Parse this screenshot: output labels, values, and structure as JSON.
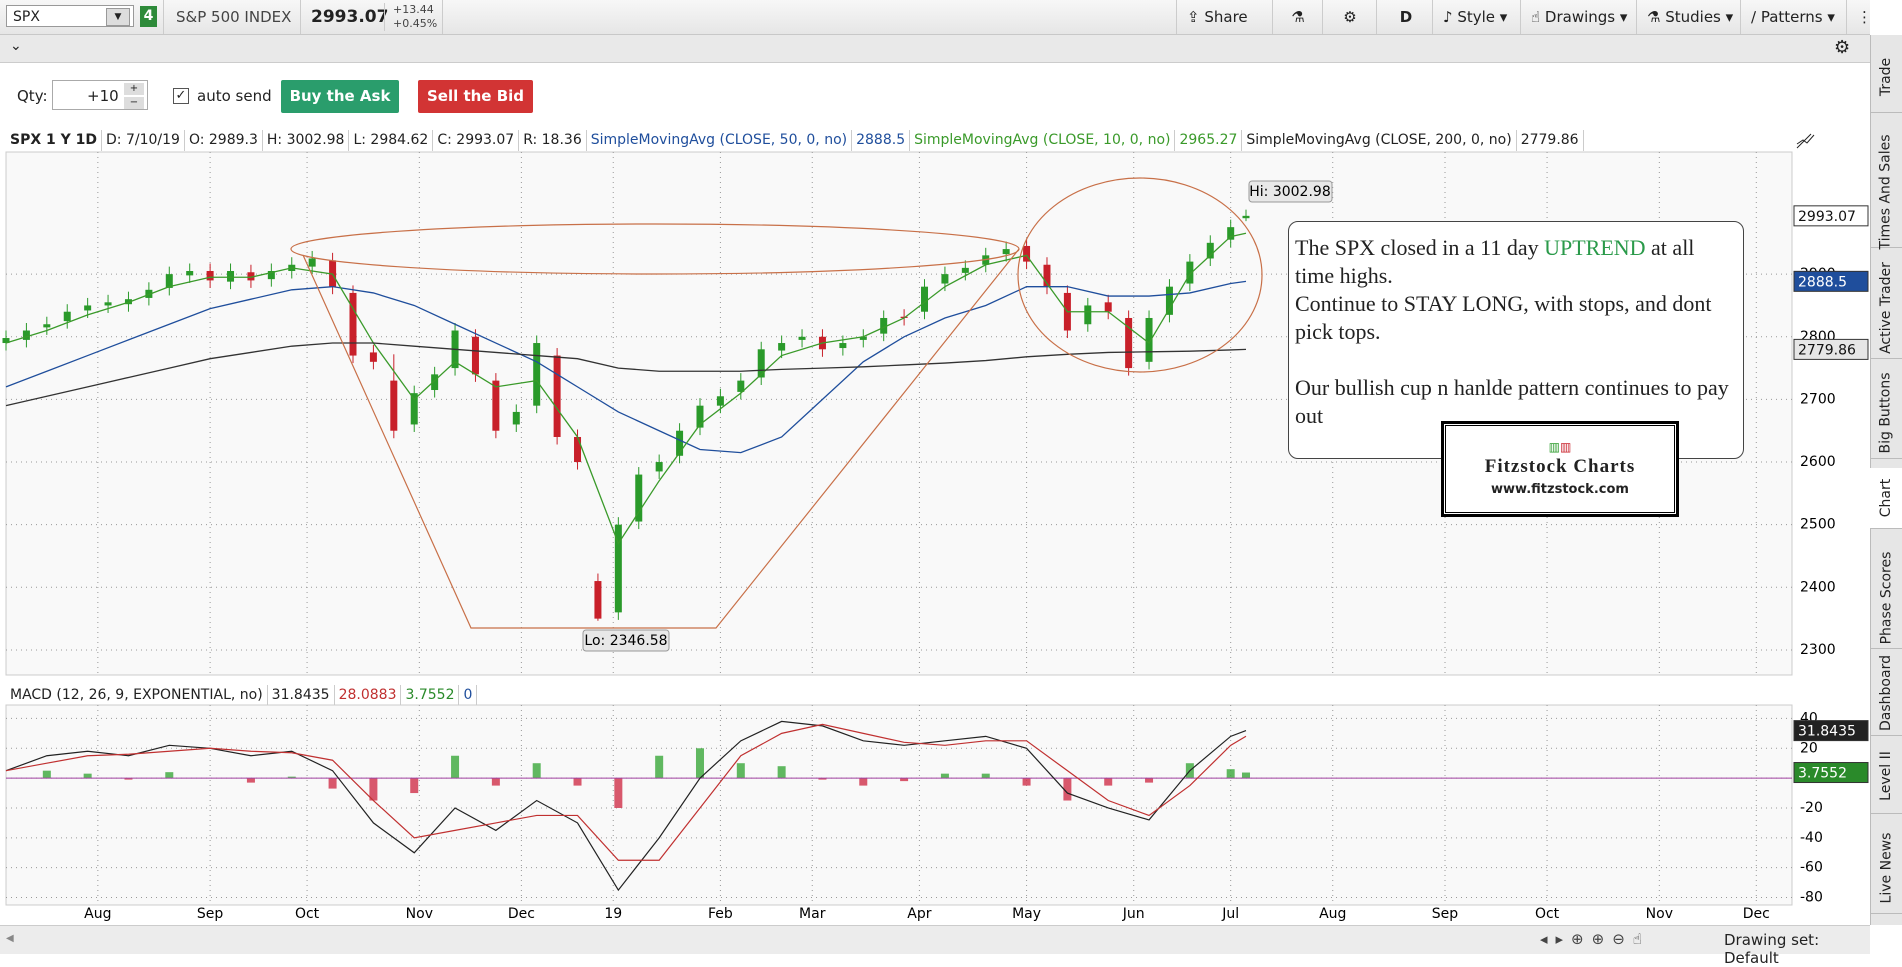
{
  "toolbar": {
    "symbol": "SPX",
    "badge": "4",
    "description": "S&P 500 INDEX",
    "last": "2993.07",
    "change": "+13.44",
    "change_pct": "+0.45%",
    "buttons": [
      "Share",
      "D",
      "Style",
      "Drawings",
      "Studies",
      "Patterns"
    ]
  },
  "order_bar": {
    "qty_label": "Qty:",
    "qty": "+10",
    "auto_send": "auto send",
    "buy": "Buy the Ask",
    "sell": "Sell the Bid"
  },
  "info_bar": [
    "SPX 1 Y 1D",
    "D: 7/10/19",
    "O: 2989.3",
    "H: 3002.98",
    "L: 2984.62",
    "C: 2993.07",
    "R: 18.36"
  ],
  "annotations": {
    "hi": "Hi: 3002.98",
    "lo": "Lo: 2346.58",
    "note": {
      "p1a": "The SPX closed in a 11 day",
      "p1b": "UPTREND",
      "p1c": "at all time highs.",
      "p2": "Continue to STAY LONG, with stops, and dont pick tops.",
      "p3": "Our bullish cup n hanlde pattern continues to pay out"
    },
    "logo": {
      "title": "Fitzstock Charts",
      "url": "www.fitzstock.com"
    }
  },
  "side_tabs": [
    "Trade",
    "Times And Sales",
    "Active Trader",
    "Big Buttons",
    "Chart",
    "Phase Scores",
    "Dashboard",
    "Level II",
    "Live News"
  ],
  "footer": {
    "drawing_set": "Drawing set: Default"
  },
  "chart_data": [
    {
      "type": "candlestick",
      "up_color": "#2a9a2a",
      "down_color": "#c8202a",
      "grid": true,
      "x": [
        0,
        4,
        8,
        12,
        16,
        20,
        24,
        28,
        32,
        36,
        40,
        44,
        48,
        52,
        56,
        60,
        64,
        68,
        72,
        76,
        80,
        84,
        88,
        92,
        96,
        100,
        104,
        108,
        112,
        116,
        120,
        124,
        128,
        132,
        136,
        140,
        144,
        148,
        152,
        156,
        160,
        164,
        168,
        172,
        176,
        180,
        184,
        188,
        192,
        196,
        200,
        204,
        208,
        212,
        216,
        220,
        224,
        228,
        232,
        236,
        240,
        243
      ],
      "open": [
        2790,
        2795,
        2815,
        2825,
        2842,
        2850,
        2852,
        2862,
        2878,
        2898,
        2905,
        2888,
        2903,
        2892,
        2905,
        2912,
        2922,
        2870,
        2775,
        2730,
        2660,
        2715,
        2750,
        2800,
        2730,
        2660,
        2690,
        2770,
        2640,
        2410,
        2360,
        2505,
        2585,
        2610,
        2655,
        2690,
        2712,
        2735,
        2778,
        2795,
        2800,
        2782,
        2795,
        2805,
        2832,
        2840,
        2885,
        2902,
        2915,
        2932,
        2945,
        2915,
        2870,
        2820,
        2855,
        2830,
        2760,
        2835,
        2885,
        2925,
        2955,
        2989.3
      ],
      "high": [
        2810,
        2822,
        2832,
        2852,
        2862,
        2867,
        2872,
        2887,
        2912,
        2917,
        2917,
        2917,
        2915,
        2917,
        2927,
        2937,
        2934,
        2882,
        2787,
        2772,
        2722,
        2752,
        2822,
        2812,
        2742,
        2692,
        2802,
        2782,
        2652,
        2422,
        2512,
        2592,
        2612,
        2662,
        2702,
        2717,
        2742,
        2792,
        2802,
        2812,
        2812,
        2802,
        2812,
        2842,
        2844,
        2892,
        2912,
        2922,
        2942,
        2952,
        2957,
        2927,
        2882,
        2862,
        2867,
        2842,
        2842,
        2892,
        2932,
        2962,
        2987,
        3002.98
      ],
      "low": [
        2778,
        2783,
        2803,
        2813,
        2830,
        2838,
        2840,
        2850,
        2866,
        2886,
        2878,
        2876,
        2878,
        2880,
        2893,
        2900,
        2868,
        2758,
        2748,
        2638,
        2648,
        2703,
        2738,
        2728,
        2638,
        2648,
        2678,
        2628,
        2588,
        2346.58,
        2348,
        2493,
        2573,
        2598,
        2643,
        2678,
        2700,
        2723,
        2766,
        2783,
        2768,
        2770,
        2783,
        2793,
        2818,
        2828,
        2873,
        2890,
        2903,
        2920,
        2908,
        2868,
        2798,
        2808,
        2828,
        2738,
        2748,
        2823,
        2873,
        2913,
        2943,
        2984.62
      ],
      "close": [
        2798,
        2810,
        2820,
        2840,
        2850,
        2855,
        2860,
        2875,
        2900,
        2905,
        2890,
        2905,
        2890,
        2905,
        2915,
        2925,
        2880,
        2770,
        2760,
        2650,
        2710,
        2740,
        2810,
        2740,
        2650,
        2680,
        2790,
        2640,
        2600,
        2350,
        2500,
        2580,
        2600,
        2650,
        2690,
        2705,
        2730,
        2780,
        2790,
        2800,
        2780,
        2790,
        2800,
        2830,
        2830,
        2880,
        2900,
        2910,
        2930,
        2940,
        2920,
        2880,
        2810,
        2850,
        2840,
        2750,
        2830,
        2880,
        2920,
        2950,
        2975,
        2993.07
      ],
      "series": [
        {
          "name": "SimpleMovingAvg (CLOSE, 50, 0, no)",
          "color": "#1f4e9c",
          "x": [
            0,
            8,
            16,
            24,
            32,
            40,
            48,
            56,
            64,
            72,
            80,
            88,
            96,
            104,
            112,
            120,
            128,
            136,
            144,
            152,
            160,
            168,
            176,
            184,
            192,
            200,
            208,
            216,
            224,
            232,
            240,
            243
          ],
          "values": [
            2720,
            2745,
            2770,
            2795,
            2820,
            2845,
            2860,
            2875,
            2880,
            2870,
            2850,
            2820,
            2790,
            2760,
            2720,
            2680,
            2650,
            2620,
            2615,
            2640,
            2700,
            2760,
            2800,
            2830,
            2850,
            2880,
            2880,
            2865,
            2865,
            2870,
            2885,
            2888.5
          ]
        },
        {
          "name": "SimpleMovingAvg (CLOSE, 10, 0, no)",
          "color": "#3a9a2a",
          "x": [
            0,
            8,
            16,
            24,
            32,
            40,
            48,
            56,
            64,
            72,
            80,
            88,
            96,
            104,
            112,
            120,
            128,
            136,
            144,
            152,
            160,
            168,
            176,
            184,
            192,
            200,
            208,
            216,
            224,
            232,
            240,
            243
          ],
          "values": [
            2790,
            2810,
            2835,
            2855,
            2880,
            2895,
            2895,
            2910,
            2900,
            2790,
            2700,
            2760,
            2720,
            2730,
            2640,
            2470,
            2570,
            2660,
            2710,
            2770,
            2790,
            2800,
            2830,
            2880,
            2915,
            2930,
            2840,
            2840,
            2790,
            2900,
            2960,
            2965.27
          ]
        },
        {
          "name": "SimpleMovingAvg (CLOSE, 200, 0, no)",
          "color": "#333333",
          "x": [
            0,
            8,
            16,
            24,
            32,
            40,
            48,
            56,
            64,
            72,
            80,
            88,
            96,
            104,
            112,
            120,
            128,
            136,
            144,
            152,
            160,
            168,
            176,
            184,
            192,
            200,
            208,
            216,
            224,
            232,
            240,
            243
          ],
          "values": [
            2690,
            2705,
            2720,
            2735,
            2750,
            2765,
            2775,
            2785,
            2790,
            2790,
            2785,
            2780,
            2775,
            2770,
            2765,
            2750,
            2745,
            2745,
            2745,
            2748,
            2750,
            2752,
            2755,
            2758,
            2762,
            2768,
            2772,
            2775,
            2776,
            2777,
            2779,
            2779.86
          ]
        }
      ],
      "xlim": [
        0,
        350
      ],
      "ylim": [
        2260,
        3095
      ],
      "yticks": [
        2300,
        2400,
        2500,
        2600,
        2700,
        2800,
        2900
      ],
      "xticks": [
        {
          "value": 18,
          "label": "Aug"
        },
        {
          "value": 40,
          "label": "Sep"
        },
        {
          "value": 59,
          "label": "Oct"
        },
        {
          "value": 81,
          "label": "Nov"
        },
        {
          "value": 101,
          "label": "Dec"
        },
        {
          "value": 119,
          "label": "19"
        },
        {
          "value": 140,
          "label": "Feb"
        },
        {
          "value": 158,
          "label": "Mar"
        },
        {
          "value": 179,
          "label": "Apr"
        },
        {
          "value": 200,
          "label": "May"
        },
        {
          "value": 221,
          "label": "Jun"
        },
        {
          "value": 240,
          "label": "Jul"
        },
        {
          "value": 260,
          "label": "Aug"
        },
        {
          "value": 282,
          "label": "Sep"
        },
        {
          "value": 302,
          "label": "Oct"
        },
        {
          "value": 324,
          "label": "Nov"
        },
        {
          "value": 343,
          "label": "Dec"
        }
      ]
    },
    {
      "type": "macd",
      "title": "MACD (12, 26, 9, EXPONENTIAL, no)",
      "grid": true,
      "zero_line": 0,
      "zero_color": "#a040a0",
      "x": [
        0,
        8,
        16,
        24,
        32,
        40,
        48,
        56,
        64,
        72,
        80,
        88,
        96,
        104,
        112,
        120,
        128,
        136,
        144,
        152,
        160,
        168,
        176,
        184,
        192,
        200,
        208,
        216,
        224,
        232,
        240,
        243
      ],
      "series": [
        {
          "color": "#222222",
          "values": [
            5,
            15,
            18,
            15,
            22,
            20,
            15,
            18,
            5,
            -30,
            -50,
            -20,
            -35,
            -15,
            -30,
            -75,
            -40,
            0,
            25,
            38,
            35,
            25,
            22,
            25,
            28,
            20,
            -10,
            -20,
            -28,
            5,
            28,
            31.8435
          ]
        },
        {
          "color": "#c03030",
          "values": [
            5,
            10,
            15,
            16,
            18,
            20,
            18,
            17,
            12,
            -15,
            -40,
            -35,
            -30,
            -25,
            -25,
            -55,
            -55,
            -20,
            15,
            30,
            36,
            30,
            24,
            22,
            25,
            25,
            5,
            -15,
            -25,
            -5,
            22,
            28.0883
          ]
        },
        {
          "color": "#3aa83a",
          "down_color": "#d03048",
          "values": [
            0,
            5,
            3,
            -1,
            4,
            0,
            -3,
            1,
            -7,
            -15,
            -10,
            15,
            -5,
            10,
            -5,
            -20,
            15,
            20,
            10,
            8,
            -1,
            -5,
            -2,
            3,
            3,
            -5,
            -15,
            -5,
            -3,
            10,
            6,
            3.7552
          ]
        }
      ],
      "ylim": [
        -85,
        49
      ],
      "yticks": [
        40,
        20,
        0,
        -20,
        -40,
        -60,
        -80
      ]
    }
  ]
}
